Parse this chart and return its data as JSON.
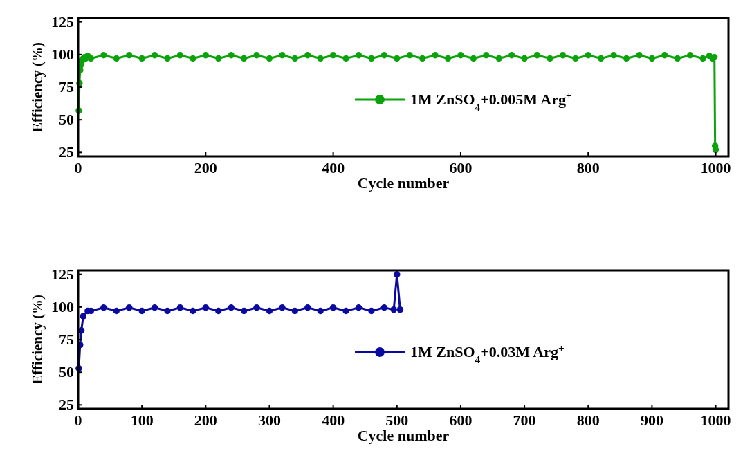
{
  "chart_data": [
    {
      "type": "line",
      "xlabel": "Cycle number",
      "ylabel": "Efficiency (%)",
      "xlim": [
        0,
        1020
      ],
      "xticks": [
        0,
        200,
        400,
        600,
        800,
        1000
      ],
      "ylim": [
        22,
        128
      ],
      "yticks": [
        25,
        50,
        75,
        100,
        125
      ],
      "marker": "circle",
      "legend": "right",
      "grid": false,
      "series": [
        {
          "name": "1M ZnSO$_{4}$+0.005M Arg$^{+}$",
          "color": "#0ca20c",
          "x": [
            1,
            2,
            3,
            4,
            5,
            6,
            8,
            10,
            12,
            15,
            20,
            40,
            60,
            80,
            100,
            120,
            140,
            160,
            180,
            200,
            220,
            240,
            260,
            280,
            300,
            320,
            340,
            360,
            380,
            400,
            420,
            440,
            460,
            480,
            500,
            520,
            540,
            560,
            580,
            600,
            620,
            640,
            660,
            680,
            700,
            720,
            740,
            760,
            780,
            800,
            820,
            840,
            860,
            880,
            900,
            920,
            940,
            960,
            980,
            990,
            995,
            998,
            999,
            1000
          ],
          "values": [
            57,
            78,
            88,
            92,
            94,
            96,
            97,
            98,
            97,
            99,
            97,
            99.5,
            97,
            99.5,
            97,
            99.5,
            97,
            99.5,
            97,
            99.5,
            97,
            99.5,
            97,
            99.5,
            97,
            99.5,
            97,
            99.5,
            97,
            99.5,
            97,
            99.5,
            97,
            99.5,
            97,
            99.5,
            97,
            99.5,
            97,
            99.5,
            97,
            99.5,
            97,
            99.5,
            97,
            99.5,
            97,
            99.5,
            97,
            99.5,
            97,
            99.5,
            97,
            99.5,
            97,
            99.5,
            97,
            99.5,
            97,
            99,
            97,
            98,
            30,
            27
          ]
        }
      ]
    },
    {
      "type": "line",
      "xlabel": "Cycle number",
      "ylabel": "Efficiency (%)",
      "xlim": [
        0,
        1020
      ],
      "xticks": [
        0,
        100,
        200,
        300,
        400,
        500,
        600,
        700,
        800,
        900,
        1000
      ],
      "ylim": [
        22,
        128
      ],
      "yticks": [
        25,
        50,
        75,
        100,
        125
      ],
      "marker": "circle",
      "legend": "right",
      "grid": false,
      "series": [
        {
          "name": "1M ZnSO$_{4}$+0.03M Arg$^{+}$",
          "color": "#0a0a9e",
          "x": [
            1,
            3,
            5,
            8,
            15,
            20,
            40,
            60,
            80,
            100,
            120,
            140,
            160,
            180,
            200,
            220,
            240,
            260,
            280,
            300,
            320,
            340,
            360,
            380,
            400,
            420,
            440,
            460,
            480,
            495,
            500,
            505
          ],
          "values": [
            53,
            71,
            82,
            93,
            97,
            97,
            99.5,
            97,
            99.5,
            97,
            99.5,
            97,
            99.5,
            97,
            99.5,
            97,
            99.5,
            97,
            99.5,
            97,
            99.5,
            97,
            99.5,
            97,
            99.5,
            97,
            99.5,
            97,
            99.5,
            98,
            125,
            98
          ]
        }
      ]
    }
  ]
}
